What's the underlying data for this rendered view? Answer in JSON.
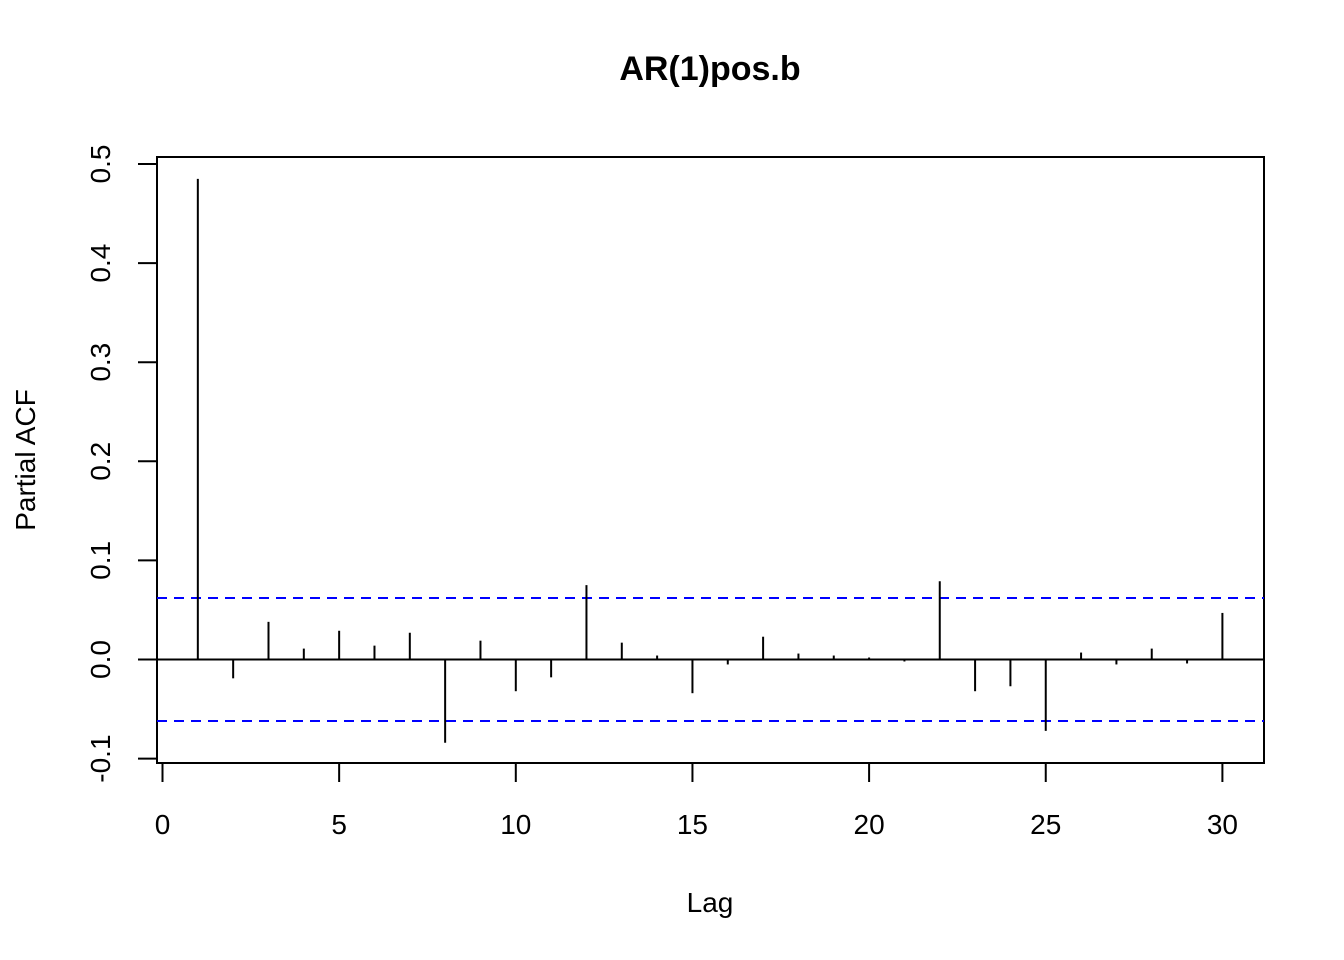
{
  "chart_data": {
    "type": "bar",
    "title": "AR(1)pos.b",
    "xlabel": "Lag",
    "ylabel": "Partial ACF",
    "xlim": [
      0,
      31.2
    ],
    "ylim": [
      -0.1,
      0.5
    ],
    "x_ticks": [
      0,
      5,
      10,
      15,
      20,
      25,
      30
    ],
    "x_tick_labels": [
      "0",
      "5",
      "10",
      "15",
      "20",
      "25",
      "30"
    ],
    "y_ticks": [
      -0.1,
      0.0,
      0.1,
      0.2,
      0.3,
      0.4,
      0.5
    ],
    "y_tick_labels": [
      "-0.1",
      "0.0",
      "0.1",
      "0.2",
      "0.3",
      "0.4",
      "0.5"
    ],
    "lags": [
      1,
      2,
      3,
      4,
      5,
      6,
      7,
      8,
      9,
      10,
      11,
      12,
      13,
      14,
      15,
      16,
      17,
      18,
      19,
      20,
      21,
      22,
      23,
      24,
      25,
      26,
      27,
      28,
      29,
      30
    ],
    "values": [
      0.485,
      -0.019,
      0.038,
      0.011,
      0.029,
      0.014,
      0.027,
      -0.084,
      0.019,
      -0.032,
      -0.018,
      0.075,
      0.017,
      0.004,
      -0.034,
      -0.005,
      0.023,
      0.006,
      0.004,
      0.002,
      -0.002,
      0.079,
      -0.032,
      -0.027,
      -0.072,
      0.007,
      -0.005,
      0.011,
      -0.004,
      0.047
    ],
    "confidence_bounds": [
      0.062,
      -0.062
    ],
    "colors": {
      "bars": "#000000",
      "bounds": "#0000ff",
      "axes": "#000000"
    },
    "grid": false
  }
}
